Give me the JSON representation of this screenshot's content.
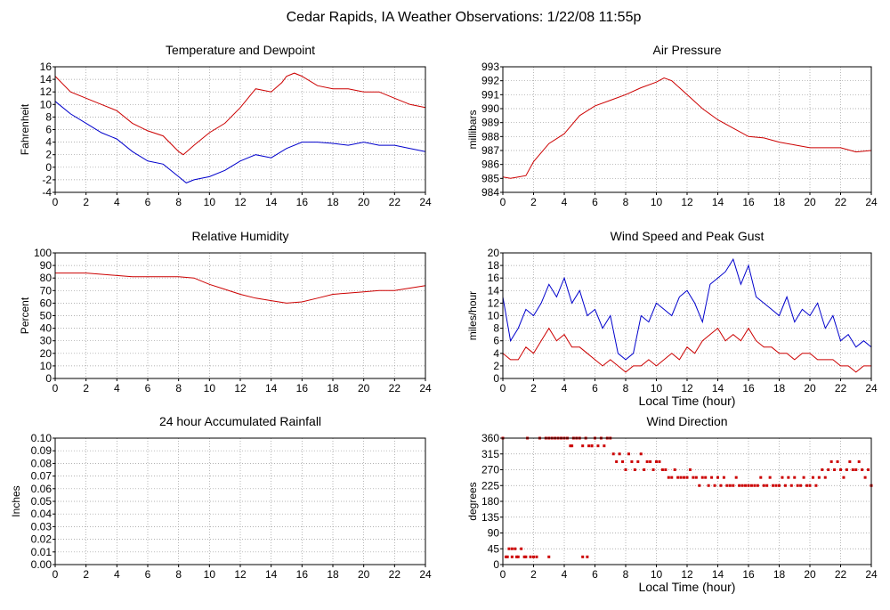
{
  "page": {
    "title": "Cedar Rapids, IA Weather Observations: 1/22/08 11:55p"
  },
  "chart_data": [
    {
      "id": "temp",
      "type": "line",
      "title": "Temperature and Dewpoint",
      "xlabel": "",
      "ylabel": "Fahrenheit",
      "xlim": [
        0,
        24
      ],
      "ylim": [
        -4,
        16
      ],
      "xticks": [
        0,
        2,
        4,
        6,
        8,
        10,
        12,
        14,
        16,
        18,
        20,
        22,
        24
      ],
      "yticks": [
        -4,
        -2,
        0,
        2,
        4,
        6,
        8,
        10,
        12,
        14,
        16
      ],
      "grid": true,
      "series": [
        {
          "color": "#cc0000",
          "x": [
            0,
            1,
            2,
            3,
            4,
            5,
            6,
            7,
            8,
            8.3,
            9,
            10,
            11,
            12,
            13,
            14,
            14.7,
            15,
            15.5,
            16,
            17,
            18,
            19,
            20,
            21,
            22,
            23,
            24
          ],
          "y": [
            14.5,
            12,
            11,
            10,
            9,
            7,
            5.8,
            5,
            2.5,
            2,
            3.5,
            5.5,
            7,
            9.5,
            12.5,
            12,
            13.5,
            14.5,
            15,
            14.5,
            13,
            12.5,
            12.5,
            12,
            12,
            11,
            10,
            9.5
          ]
        },
        {
          "color": "#0000cc",
          "x": [
            0,
            1,
            2,
            3,
            4,
            5,
            6,
            7,
            8,
            8.5,
            9,
            10,
            11,
            12,
            13,
            14,
            15,
            16,
            17,
            18,
            19,
            20,
            21,
            22,
            23,
            24
          ],
          "y": [
            10.5,
            8.5,
            7,
            5.5,
            4.5,
            2.5,
            1,
            0.5,
            -1.5,
            -2.5,
            -2,
            -1.5,
            -0.5,
            1,
            2,
            1.5,
            3,
            4,
            4,
            3.8,
            3.5,
            4,
            3.5,
            3.5,
            3,
            2.5
          ]
        }
      ]
    },
    {
      "id": "pressure",
      "type": "line",
      "title": "Air Pressure",
      "xlabel": "",
      "ylabel": "millibars",
      "xlim": [
        0,
        24
      ],
      "ylim": [
        984,
        993
      ],
      "xticks": [
        0,
        2,
        4,
        6,
        8,
        10,
        12,
        14,
        16,
        18,
        20,
        22,
        24
      ],
      "yticks": [
        984,
        985,
        986,
        987,
        988,
        989,
        990,
        991,
        992,
        993
      ],
      "grid": true,
      "series": [
        {
          "color": "#cc0000",
          "x": [
            0,
            0.5,
            1,
            1.5,
            2,
            3,
            4,
            5,
            6,
            7,
            8,
            9,
            10,
            10.5,
            11,
            12,
            13,
            14,
            15,
            16,
            17,
            18,
            19,
            20,
            21,
            22,
            23,
            24
          ],
          "y": [
            985.1,
            985.0,
            985.1,
            985.2,
            986.2,
            987.5,
            988.2,
            989.5,
            990.2,
            990.6,
            991.0,
            991.5,
            991.9,
            992.2,
            992.0,
            991.0,
            990.0,
            989.2,
            988.6,
            988.0,
            987.9,
            987.6,
            987.4,
            987.2,
            987.2,
            987.2,
            986.9,
            987.0
          ]
        }
      ]
    },
    {
      "id": "humidity",
      "type": "line",
      "title": "Relative Humidity",
      "xlabel": "",
      "ylabel": "Percent",
      "xlim": [
        0,
        24
      ],
      "ylim": [
        0,
        100
      ],
      "xticks": [
        0,
        2,
        4,
        6,
        8,
        10,
        12,
        14,
        16,
        18,
        20,
        22,
        24
      ],
      "yticks": [
        0,
        10,
        20,
        30,
        40,
        50,
        60,
        70,
        80,
        90,
        100
      ],
      "grid": true,
      "series": [
        {
          "color": "#cc0000",
          "x": [
            0,
            2,
            3,
            4,
            5,
            6,
            7,
            8,
            9,
            10,
            11,
            12,
            13,
            14,
            15,
            16,
            17,
            18,
            19,
            20,
            21,
            22,
            23,
            24
          ],
          "y": [
            84,
            84,
            83,
            82,
            81,
            81,
            81,
            81,
            80,
            75,
            71,
            67,
            64,
            62,
            60,
            61,
            64,
            67,
            68,
            69,
            70,
            70,
            72,
            74
          ]
        }
      ]
    },
    {
      "id": "wind",
      "type": "line",
      "title": "Wind Speed and Peak Gust",
      "xlabel": "Local Time (hour)",
      "ylabel": "miles/hour",
      "xlim": [
        0,
        24
      ],
      "ylim": [
        0,
        20
      ],
      "xticks": [
        0,
        2,
        4,
        6,
        8,
        10,
        12,
        14,
        16,
        18,
        20,
        22,
        24
      ],
      "yticks": [
        0,
        2,
        4,
        6,
        8,
        10,
        12,
        14,
        16,
        18,
        20
      ],
      "grid": true,
      "series": [
        {
          "color": "#0000cc",
          "x": [
            0,
            0.5,
            1,
            1.5,
            2,
            2.5,
            3,
            3.5,
            4,
            4.5,
            5,
            5.5,
            6,
            6.5,
            7,
            7.5,
            8,
            8.5,
            9,
            9.5,
            10,
            10.5,
            11,
            11.5,
            12,
            12.5,
            13,
            13.5,
            14,
            14.5,
            15,
            15.5,
            16,
            16.5,
            17,
            17.5,
            18,
            18.5,
            19,
            19.5,
            20,
            20.5,
            21,
            21.5,
            22,
            22.5,
            23,
            23.5,
            24
          ],
          "y": [
            13,
            6,
            8,
            11,
            10,
            12,
            15,
            13,
            16,
            12,
            14,
            10,
            11,
            8,
            10,
            4,
            3,
            4,
            10,
            9,
            12,
            11,
            10,
            13,
            14,
            12,
            9,
            15,
            16,
            17,
            19,
            15,
            18,
            13,
            12,
            11,
            10,
            13,
            9,
            11,
            10,
            12,
            8,
            10,
            6,
            7,
            5,
            6,
            5
          ]
        },
        {
          "color": "#cc0000",
          "x": [
            0,
            0.5,
            1,
            1.5,
            2,
            2.5,
            3,
            3.5,
            4,
            4.5,
            5,
            5.5,
            6,
            6.5,
            7,
            7.5,
            8,
            8.5,
            9,
            9.5,
            10,
            10.5,
            11,
            11.5,
            12,
            12.5,
            13,
            13.5,
            14,
            14.5,
            15,
            15.5,
            16,
            16.5,
            17,
            17.5,
            18,
            18.5,
            19,
            19.5,
            20,
            20.5,
            21,
            21.5,
            22,
            22.5,
            23,
            23.5,
            24
          ],
          "y": [
            4,
            3,
            3,
            5,
            4,
            6,
            8,
            6,
            7,
            5,
            5,
            4,
            3,
            2,
            3,
            2,
            1,
            2,
            2,
            3,
            2,
            3,
            4,
            3,
            5,
            4,
            6,
            7,
            8,
            6,
            7,
            6,
            8,
            6,
            5,
            5,
            4,
            4,
            3,
            4,
            4,
            3,
            3,
            3,
            2,
            2,
            1,
            2,
            2
          ]
        }
      ]
    },
    {
      "id": "rain",
      "type": "line",
      "title": "24 hour Accumulated Rainfall",
      "xlabel": "",
      "ylabel": "Inches",
      "xlim": [
        0,
        24
      ],
      "ylim": [
        0,
        0.1
      ],
      "xticks": [
        0,
        2,
        4,
        6,
        8,
        10,
        12,
        14,
        16,
        18,
        20,
        22,
        24
      ],
      "yticks": [
        "0.00",
        "0.01",
        "0.02",
        "0.03",
        "0.04",
        "0.05",
        "0.06",
        "0.07",
        "0.08",
        "0.09",
        "0.10"
      ],
      "grid": true,
      "series": [
        {
          "color": "#cc0000",
          "x": [
            0,
            24
          ],
          "y": [
            0,
            0
          ]
        }
      ]
    },
    {
      "id": "direction",
      "type": "scatter",
      "title": "Wind Direction",
      "xlabel": "Local Time (hour)",
      "ylabel": "degrees",
      "xlim": [
        0,
        24
      ],
      "ylim": [
        0,
        360
      ],
      "xticks": [
        0,
        2,
        4,
        6,
        8,
        10,
        12,
        14,
        16,
        18,
        20,
        22,
        24
      ],
      "yticks": [
        0,
        45,
        90,
        135,
        180,
        225,
        270,
        315,
        360
      ],
      "grid": true,
      "series": [
        {
          "color": "#cc0000",
          "x": [
            0,
            0.2,
            0.4,
            0.6,
            0.8,
            1.0,
            1.2,
            1.4,
            1.6,
            1.8,
            2.0,
            2.2,
            2.4,
            2.8,
            3.0,
            3.2,
            3.4,
            3.6,
            3.8,
            4.0,
            4.2,
            4.4,
            4.6,
            4.8,
            5.0,
            5.2,
            5.4,
            5.6,
            5.8,
            6.0,
            6.2,
            6.4,
            6.6,
            6.8,
            7.0,
            7.2,
            7.4,
            7.6,
            7.8,
            8.0,
            8.2,
            8.4,
            8.6,
            8.8,
            9.0,
            9.2,
            9.4,
            9.6,
            9.8,
            10.0,
            10.2,
            10.4,
            10.6,
            10.8,
            11.0,
            11.2,
            11.4,
            11.6,
            11.8,
            12.0,
            12.2,
            12.4,
            12.6,
            12.8,
            13.0,
            13.2,
            13.4,
            13.6,
            13.8,
            14.0,
            14.2,
            14.4,
            14.6,
            14.8,
            15.0,
            15.2,
            15.4,
            15.6,
            15.8,
            16.0,
            16.2,
            16.4,
            16.6,
            16.8,
            17.0,
            17.2,
            17.4,
            17.6,
            17.8,
            18.0,
            18.2,
            18.4,
            18.6,
            18.8,
            19.0,
            19.2,
            19.4,
            19.6,
            19.8,
            20.0,
            20.2,
            20.4,
            20.6,
            20.8,
            21.0,
            21.2,
            21.4,
            21.6,
            21.8,
            22.0,
            22.2,
            22.4,
            22.6,
            22.8,
            23.0,
            23.2,
            23.4,
            23.6,
            23.8,
            24.0,
            0.3,
            0.6,
            0.9,
            1.5,
            3.0,
            5.2,
            5.5,
            4.5,
            5.8
          ],
          "y": [
            360,
            22,
            45,
            45,
            45,
            22,
            45,
            22,
            360,
            22,
            22,
            22,
            360,
            360,
            360,
            360,
            360,
            360,
            360,
            360,
            360,
            338,
            360,
            360,
            360,
            338,
            360,
            338,
            338,
            360,
            338,
            360,
            338,
            360,
            360,
            315,
            293,
            315,
            293,
            270,
            315,
            293,
            270,
            293,
            315,
            270,
            293,
            293,
            270,
            293,
            293,
            270,
            270,
            248,
            248,
            270,
            248,
            248,
            248,
            248,
            270,
            248,
            248,
            225,
            248,
            248,
            225,
            248,
            225,
            248,
            225,
            248,
            225,
            225,
            225,
            248,
            225,
            225,
            225,
            225,
            225,
            225,
            225,
            248,
            225,
            225,
            248,
            225,
            225,
            225,
            248,
            225,
            248,
            225,
            248,
            225,
            225,
            248,
            225,
            225,
            248,
            225,
            248,
            270,
            248,
            270,
            293,
            270,
            293,
            270,
            248,
            270,
            293,
            270,
            270,
            293,
            270,
            248,
            270,
            225,
            22,
            22,
            22,
            22,
            22,
            22,
            22,
            338,
            338
          ]
        }
      ]
    }
  ]
}
